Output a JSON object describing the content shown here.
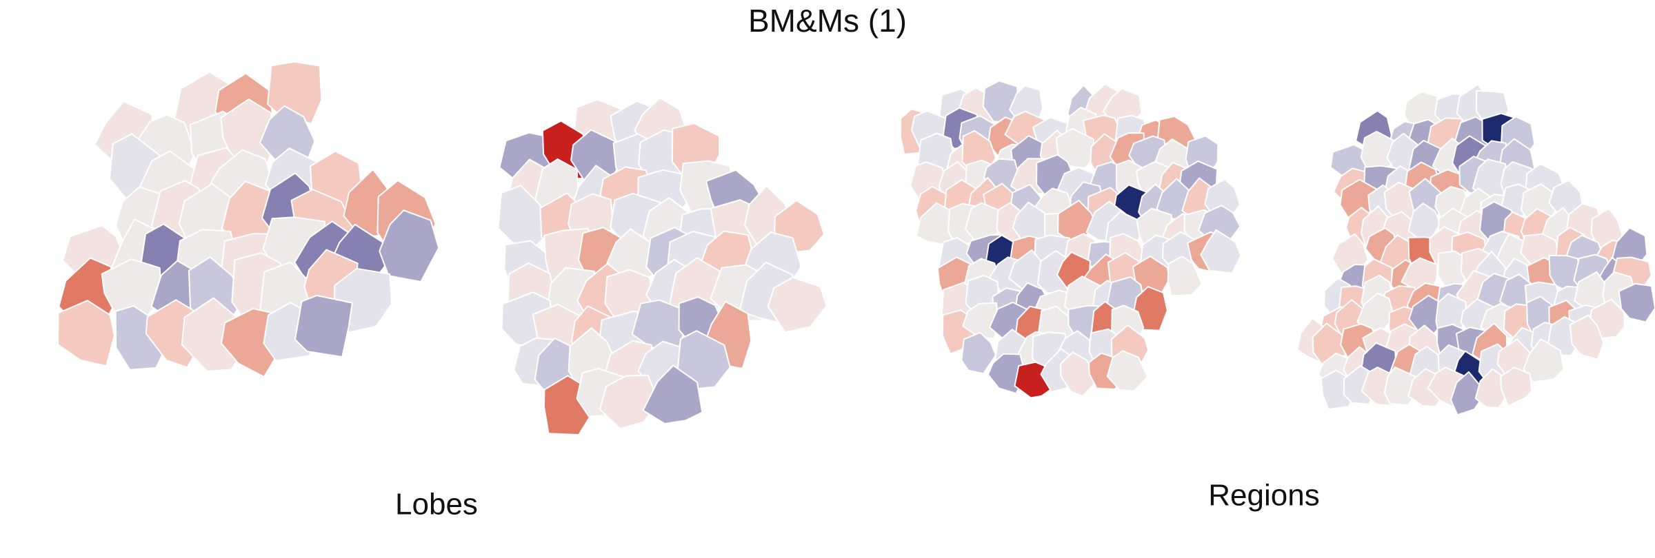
{
  "header": {
    "title": "BM&Ms (1)"
  },
  "panels": [
    {
      "label": "Lobes"
    },
    {
      "label": "Regions"
    }
  ]
}
